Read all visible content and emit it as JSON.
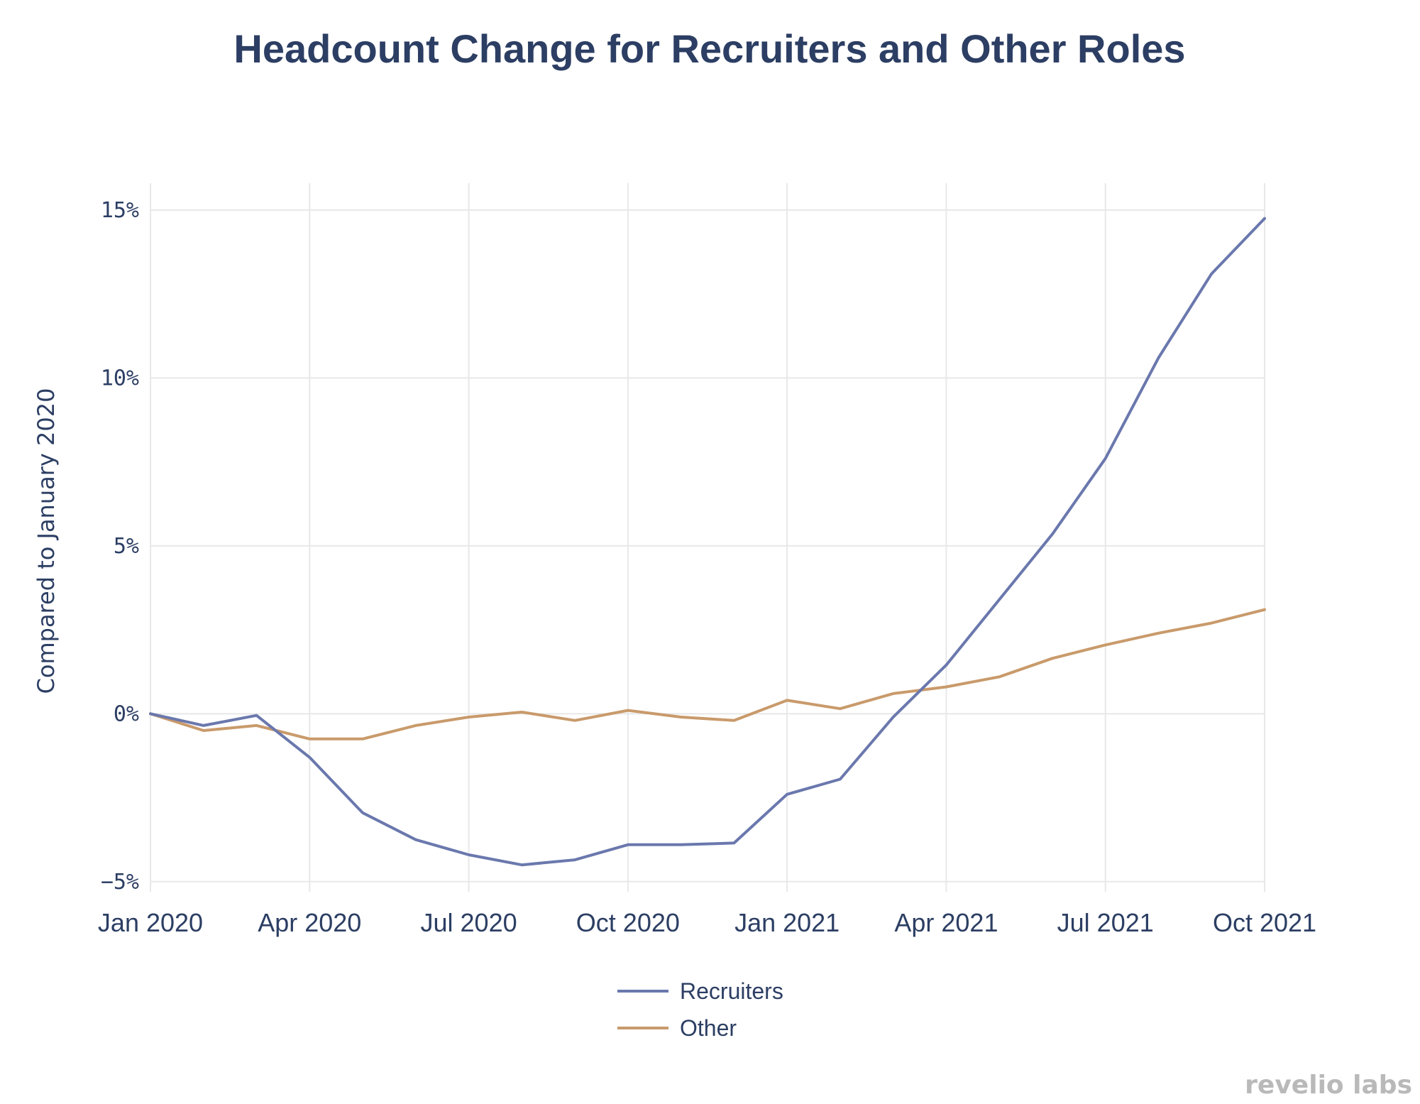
{
  "chart_data": {
    "type": "line",
    "title": "Headcount Change for Recruiters and Other Roles",
    "xlabel": "",
    "ylabel": "Compared to January 2020",
    "x": [
      "2020-01",
      "2020-02",
      "2020-03",
      "2020-04",
      "2020-05",
      "2020-06",
      "2020-07",
      "2020-08",
      "2020-09",
      "2020-10",
      "2020-11",
      "2020-12",
      "2021-01",
      "2021-02",
      "2021-03",
      "2021-04",
      "2021-05",
      "2021-06",
      "2021-07",
      "2021-08",
      "2021-09",
      "2021-10"
    ],
    "x_ticks": [
      {
        "x": "2020-01",
        "label": "Jan 2020"
      },
      {
        "x": "2020-04",
        "label": "Apr 2020"
      },
      {
        "x": "2020-07",
        "label": "Jul 2020"
      },
      {
        "x": "2020-10",
        "label": "Oct 2020"
      },
      {
        "x": "2021-01",
        "label": "Jan 2021"
      },
      {
        "x": "2021-04",
        "label": "Apr 2021"
      },
      {
        "x": "2021-07",
        "label": "Jul 2021"
      },
      {
        "x": "2021-10",
        "label": "Oct 2021"
      }
    ],
    "y_ticks": [
      {
        "value": -5,
        "label": "−5%"
      },
      {
        "value": 0,
        "label": "0%"
      },
      {
        "value": 5,
        "label": "5%"
      },
      {
        "value": 10,
        "label": "10%"
      },
      {
        "value": 15,
        "label": "15%"
      }
    ],
    "xlim": [
      "2020-01",
      "2021-10"
    ],
    "ylim": [
      -5.3,
      15.8
    ],
    "grid": true,
    "legend_position": "bottom-center",
    "series": [
      {
        "name": "Recruiters",
        "color": "#6a78ad",
        "values": [
          0,
          -0.35,
          -0.05,
          -1.3,
          -2.95,
          -3.75,
          -4.2,
          -4.5,
          -4.35,
          -3.9,
          -3.9,
          -3.85,
          -2.4,
          -1.95,
          -0.1,
          1.45,
          3.4,
          5.35,
          7.6,
          10.6,
          13.1,
          14.75
        ]
      },
      {
        "name": "Other",
        "color": "#c99a6b",
        "values": [
          0,
          -0.5,
          -0.35,
          -0.75,
          -0.75,
          -0.35,
          -0.1,
          0.05,
          -0.2,
          0.1,
          -0.1,
          -0.2,
          0.4,
          0.15,
          0.6,
          0.8,
          1.1,
          1.65,
          2.05,
          2.4,
          2.7,
          3.1
        ]
      }
    ]
  },
  "brand": {
    "name": "revelio labs"
  }
}
